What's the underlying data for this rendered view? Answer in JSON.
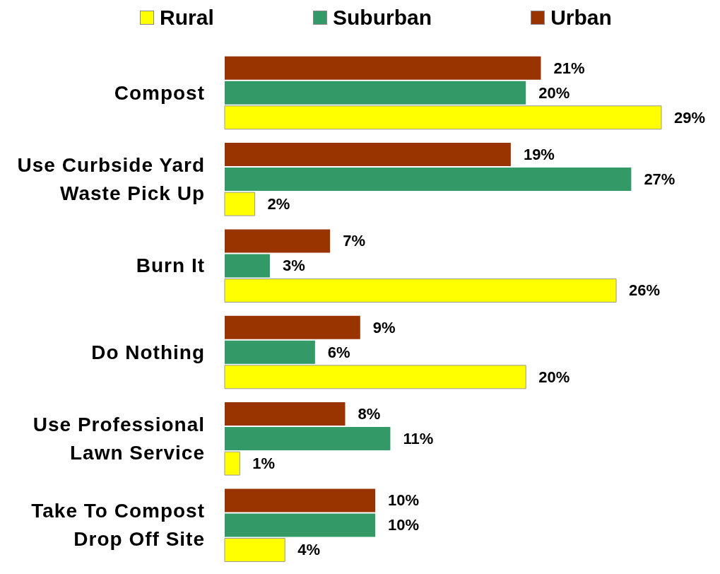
{
  "chart_data": {
    "type": "bar",
    "orientation": "horizontal",
    "legend": "top",
    "grid": false,
    "categories": [
      "Compost",
      "Use Curbside Yard Waste Pick Up",
      "Burn It",
      "Do Nothing",
      "Use Professional Lawn Service",
      "Take To Compost Drop Off Site"
    ],
    "series": [
      {
        "name": "Urban",
        "color": "#993300",
        "values": [
          21,
          19,
          7,
          9,
          8,
          10
        ],
        "value_labels": [
          "21%",
          "19%",
          "7%",
          "9%",
          "8%",
          "10%"
        ]
      },
      {
        "name": "Suburban",
        "color": "#339966",
        "values": [
          20,
          27,
          3,
          6,
          11,
          10
        ],
        "value_labels": [
          "20%",
          "27%",
          "3%",
          "6%",
          "11%",
          "10%"
        ]
      },
      {
        "name": "Rural",
        "color": "#ffff00",
        "values": [
          29,
          2,
          26,
          20,
          1,
          4
        ],
        "value_labels": [
          "29%",
          "2%",
          "26%",
          "20%",
          "1%",
          "4%"
        ]
      }
    ]
  }
}
